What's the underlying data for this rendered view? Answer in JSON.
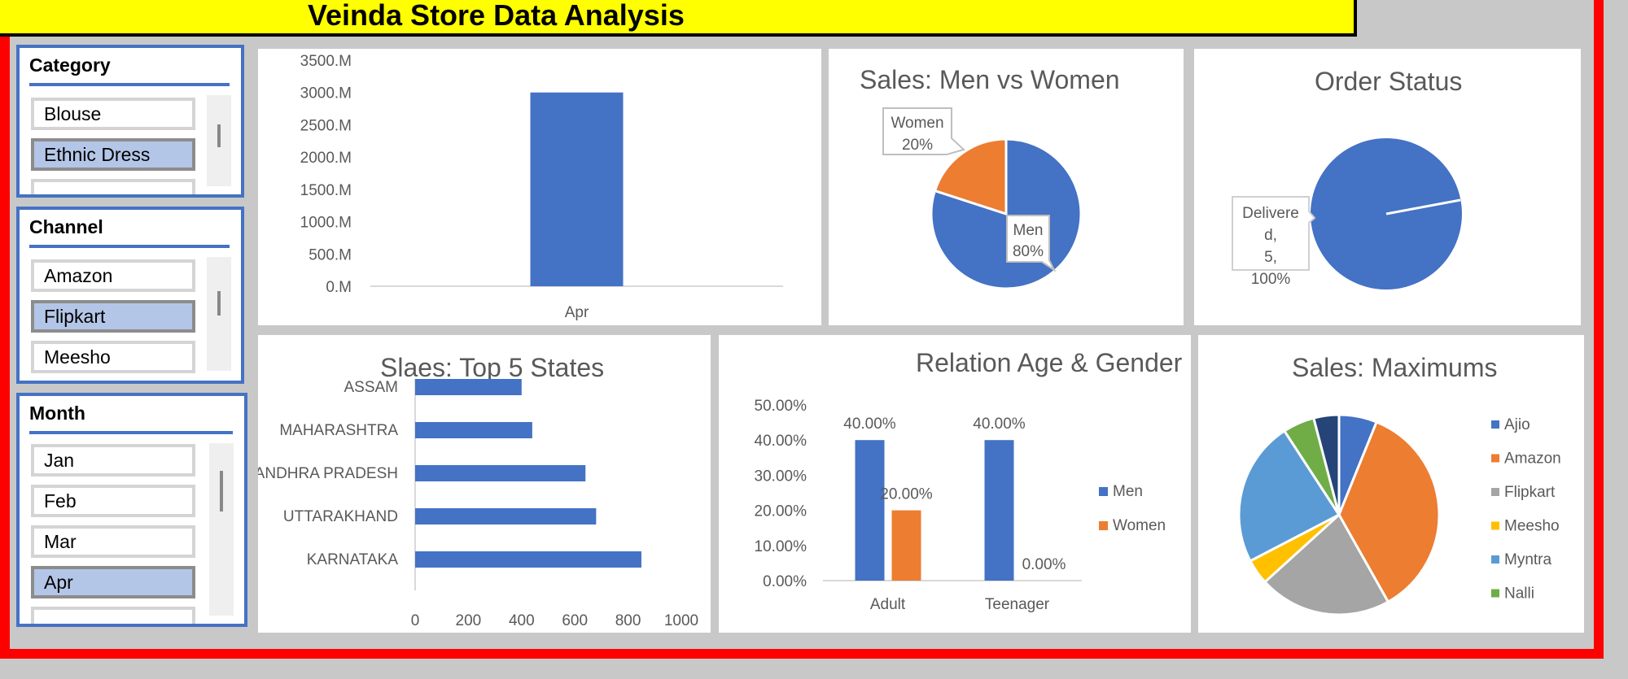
{
  "title": "Veinda Store Data Analysis",
  "slicers": {
    "category": {
      "header": "Category",
      "items": [
        "Blouse",
        "Ethnic Dress"
      ],
      "selected": "Ethnic Dress"
    },
    "channel": {
      "header": "Channel",
      "items": [
        "Amazon",
        "Flipkart",
        "Meesho"
      ],
      "selected": "Flipkart"
    },
    "month": {
      "header": "Month",
      "items": [
        "Jan",
        "Feb",
        "Mar",
        "Apr"
      ],
      "selected": "Apr"
    }
  },
  "chart_data": [
    {
      "type": "bar",
      "title": "",
      "categories": [
        "Apr"
      ],
      "values": [
        3000
      ],
      "ylim": [
        0,
        3500
      ],
      "ytick_labels": [
        "0.M",
        "500.M",
        "1000.M",
        "1500.M",
        "2000.M",
        "2500.M",
        "3000.M",
        "3500.M"
      ],
      "color": "#4472c4"
    },
    {
      "type": "pie",
      "title": "Sales: Men vs Women",
      "slices": [
        {
          "label": "Men",
          "value": 80,
          "text": "80%",
          "color": "#4472c4"
        },
        {
          "label": "Women",
          "value": 20,
          "text": "20%",
          "color": "#ed7d31"
        }
      ]
    },
    {
      "type": "pie",
      "title": "Order Status",
      "slices": [
        {
          "label": "Delivere d, 5, 100%",
          "value": 100,
          "color": "#4472c4"
        }
      ]
    },
    {
      "type": "bar",
      "orientation": "horizontal",
      "title": "Slaes: Top 5 States",
      "categories": [
        "ASSAM",
        "MAHARASHTRA",
        "ANDHRA PRADESH",
        "UTTARAKHAND",
        "KARNATAKA"
      ],
      "values": [
        400,
        440,
        640,
        680,
        850
      ],
      "xlim": [
        0,
        1000
      ],
      "xticks": [
        "0",
        "200",
        "400",
        "600",
        "800",
        "1000"
      ],
      "color": "#4472c4"
    },
    {
      "type": "bar",
      "title": "Relation Age & Gender",
      "categories": [
        "Adult",
        "Teenager"
      ],
      "series": [
        {
          "name": "Men",
          "values": [
            40,
            40
          ],
          "labels": [
            "40.00%",
            "40.00%"
          ],
          "color": "#4472c4"
        },
        {
          "name": "Women",
          "values": [
            20,
            0
          ],
          "labels": [
            "20.00%",
            "0.00%"
          ],
          "color": "#ed7d31"
        }
      ],
      "ylim": [
        0,
        50
      ],
      "yticks": [
        "0.00%",
        "10.00%",
        "20.00%",
        "30.00%",
        "40.00%",
        "50.00%"
      ],
      "legend": "right"
    },
    {
      "type": "pie",
      "title": "Sales: Maximums",
      "slices": [
        {
          "label": "Ajio",
          "value": 6,
          "color": "#4472c4"
        },
        {
          "label": "Amazon",
          "value": 35,
          "color": "#ed7d31"
        },
        {
          "label": "Flipkart",
          "value": 21,
          "color": "#a5a5a5"
        },
        {
          "label": "Meesho",
          "value": 4,
          "color": "#ffc000"
        },
        {
          "label": "Myntra",
          "value": 23,
          "color": "#5b9bd5"
        },
        {
          "label": "Nalli",
          "value": 5,
          "color": "#70ad47"
        },
        {
          "label": "",
          "value": 4,
          "color": "#264478"
        }
      ],
      "legend": "right"
    }
  ]
}
